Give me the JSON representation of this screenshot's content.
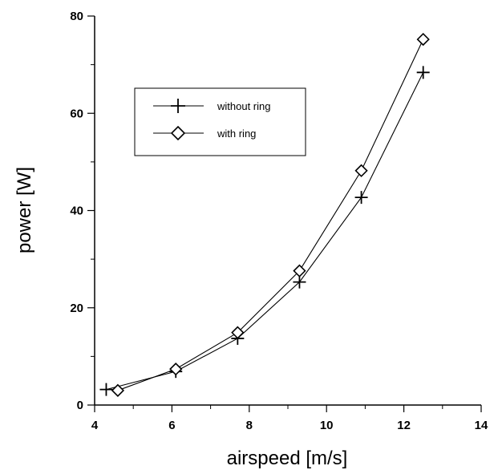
{
  "chart_data": {
    "type": "line",
    "xlabel": "airspeed [m/s]",
    "ylabel": "power [W]",
    "xlim": [
      4,
      14
    ],
    "ylim": [
      0,
      80
    ],
    "x_ticks": [
      "4",
      "6",
      "8",
      "10",
      "12",
      "14"
    ],
    "y_ticks": [
      "0",
      "20",
      "40",
      "60",
      "80"
    ],
    "grid": false,
    "legend_position": "upper-left",
    "series": [
      {
        "name": "without ring",
        "marker": "plus",
        "x": [
          4.3,
          6.1,
          7.7,
          9.3,
          10.9,
          12.5
        ],
        "y": [
          3.2,
          6.9,
          13.7,
          25.3,
          42.7,
          68.4
        ]
      },
      {
        "name": "with ring",
        "marker": "diamond",
        "x": [
          4.6,
          6.1,
          7.7,
          9.3,
          10.9,
          12.5
        ],
        "y": [
          3.0,
          7.4,
          14.9,
          27.6,
          48.2,
          75.2
        ]
      }
    ]
  }
}
